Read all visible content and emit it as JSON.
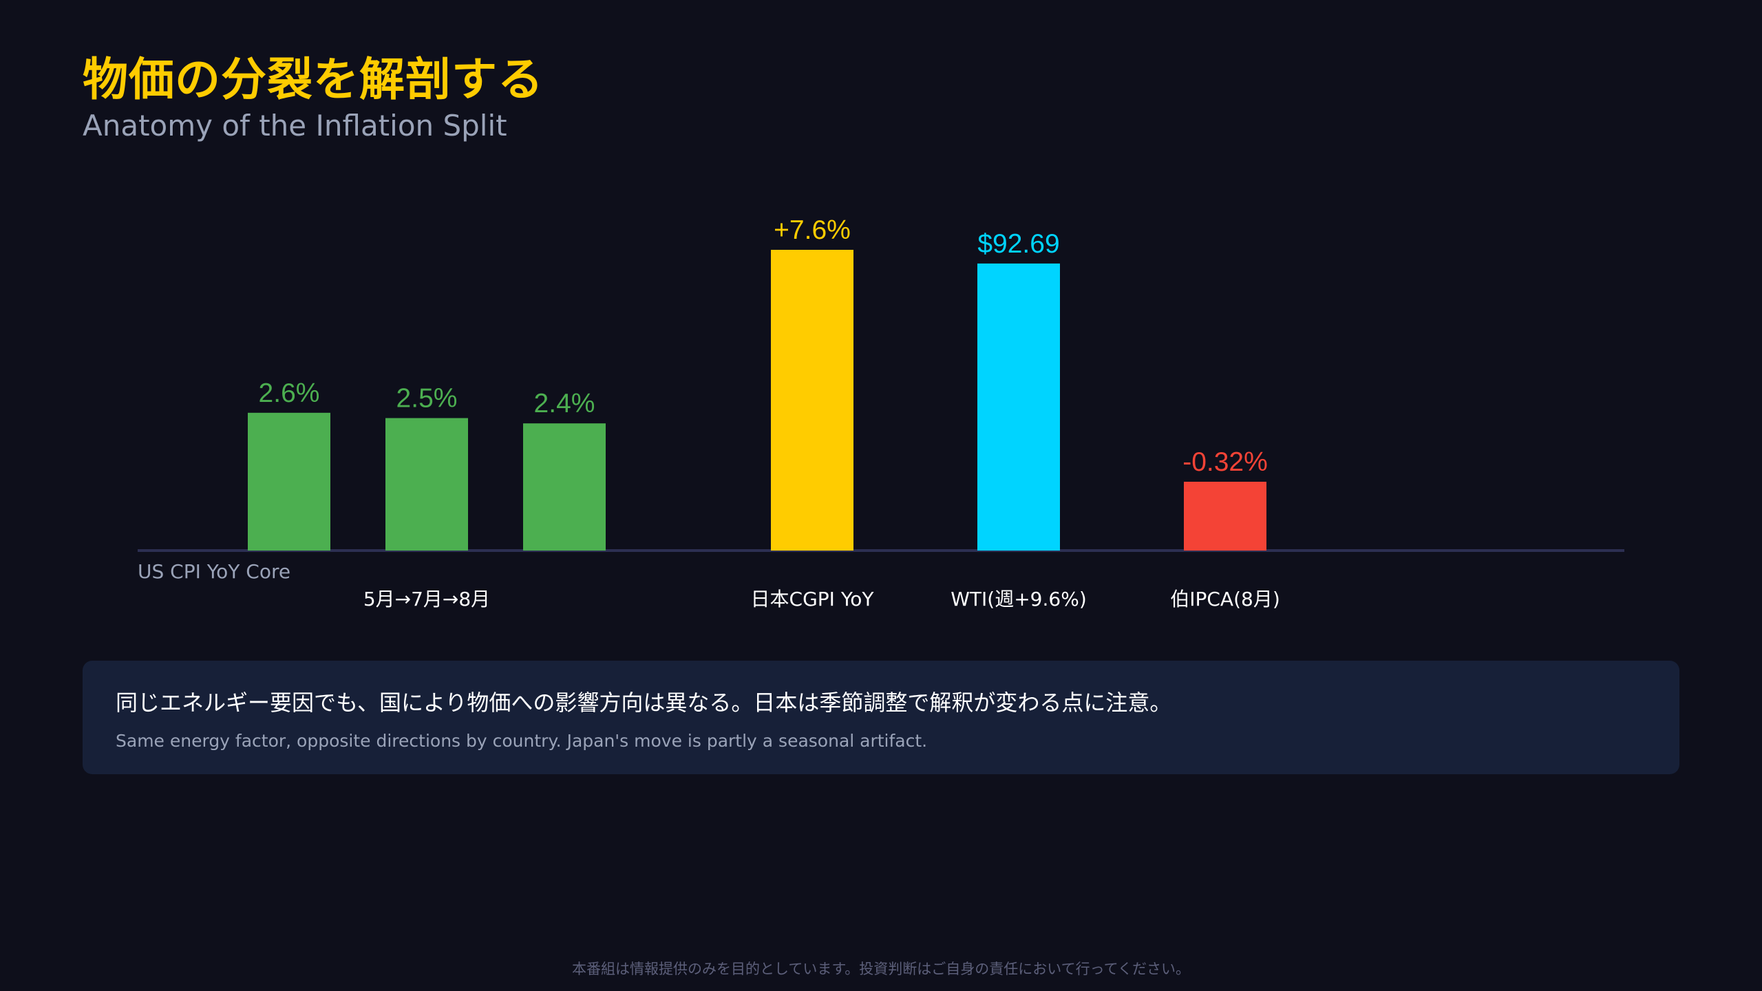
{
  "header": {
    "title": "物価の分裂を解剖する",
    "subtitle": "Anatomy of the Inflation Split"
  },
  "chart_data": {
    "type": "bar",
    "grid": false,
    "groups": [
      {
        "label": "US CPI YoY Core",
        "sublabel": "5月→7月→8月",
        "bars": [
          {
            "value": 2.6,
            "label": "2.6%",
            "color": "#4caf50"
          },
          {
            "value": 2.5,
            "label": "2.5%",
            "color": "#4caf50"
          },
          {
            "value": 2.4,
            "label": "2.4%",
            "color": "#4caf50"
          }
        ]
      },
      {
        "label": "日本CGPI YoY",
        "bars": [
          {
            "value": 7.6,
            "label": "+7.6%",
            "color": "#ffcc00"
          }
        ]
      },
      {
        "label": "WTI(週+9.6%)",
        "bars": [
          {
            "value": 92.69,
            "label": "$92.69",
            "color": "#00d4ff"
          }
        ]
      },
      {
        "label": "伯IPCA(8月)",
        "bars": [
          {
            "value": -0.32,
            "label": "-0.32%",
            "color": "#f44336"
          }
        ]
      }
    ]
  },
  "note": {
    "main": "同じエネルギー要因でも、国により物価への影響方向は異なる。日本は季節調整で解釈が変わる点に注意。",
    "sub": "Same energy factor, opposite directions by country. Japan's move is partly a seasonal artifact."
  },
  "disclaimer": "本番組は情報提供のみを目的としています。投資判断はご自身の責任において行ってください。"
}
